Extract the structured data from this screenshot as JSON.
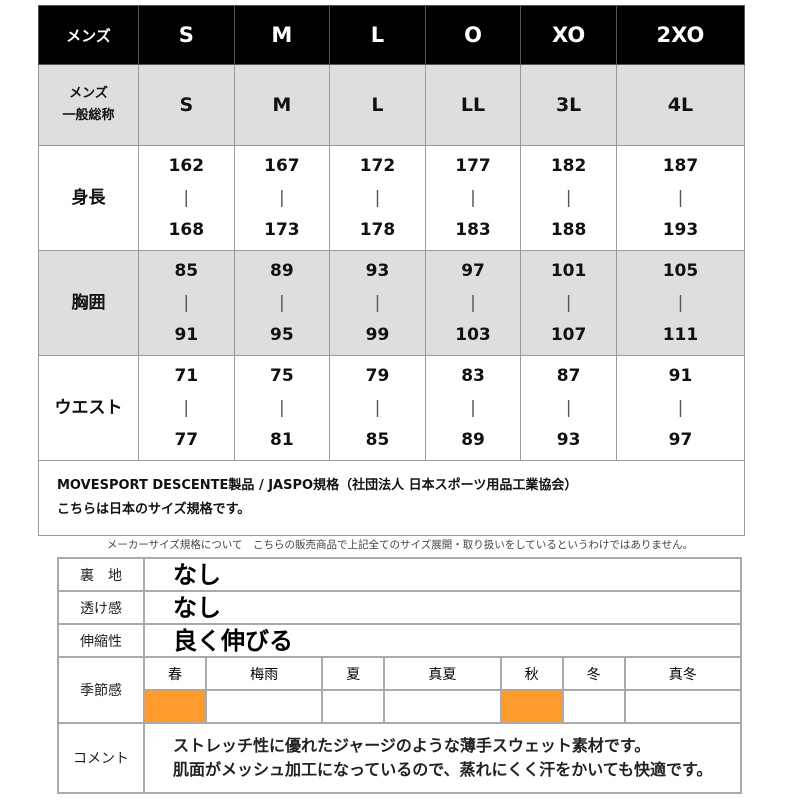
{
  "size_table": {
    "header": {
      "label": "メンズ",
      "sizes": [
        "S",
        "M",
        "L",
        "O",
        "XO",
        "2XO"
      ]
    },
    "general": {
      "label": "メンズ\n一般総称",
      "label_lines": [
        "メンズ",
        "一般総称"
      ],
      "values": [
        "S",
        "M",
        "L",
        "LL",
        "3L",
        "4L"
      ]
    },
    "rows": [
      {
        "label": "身長",
        "ranges": [
          [
            "162",
            "168"
          ],
          [
            "167",
            "173"
          ],
          [
            "172",
            "178"
          ],
          [
            "177",
            "183"
          ],
          [
            "182",
            "188"
          ],
          [
            "187",
            "193"
          ]
        ]
      },
      {
        "label": "胸囲",
        "ranges": [
          [
            "85",
            "91"
          ],
          [
            "89",
            "95"
          ],
          [
            "93",
            "99"
          ],
          [
            "97",
            "103"
          ],
          [
            "101",
            "107"
          ],
          [
            "105",
            "111"
          ]
        ]
      },
      {
        "label": "ウエスト",
        "ranges": [
          [
            "71",
            "77"
          ],
          [
            "75",
            "81"
          ],
          [
            "79",
            "85"
          ],
          [
            "83",
            "89"
          ],
          [
            "87",
            "93"
          ],
          [
            "91",
            "97"
          ]
        ]
      }
    ],
    "separator": "|"
  },
  "notes": [
    "MOVESPORT DESCENTE製品 / JASPO規格（社団法人 日本スポーツ用品工業協会）",
    "こちらは日本のサイズ規格です。"
  ],
  "disclaimer": "メーカーサイズ規格について　こちらの販売商品で上記全てのサイズ展開・取り扱いをしているというわけではありません。",
  "spec": {
    "lining": {
      "label": "裏　地",
      "value": "なし"
    },
    "sheer": {
      "label": "透け感",
      "value": "なし"
    },
    "stretch": {
      "label": "伸縮性",
      "value": "良く伸びる"
    },
    "season": {
      "label": "季節感",
      "seasons": [
        "春",
        "梅雨",
        "夏",
        "真夏",
        "秋",
        "冬",
        "真冬"
      ],
      "active": [
        true,
        false,
        false,
        false,
        true,
        false,
        false
      ],
      "active_color": "#ff9a2e"
    },
    "comment": {
      "label": "コメント",
      "lines": [
        "ストレッチ性に優れたジャージのような薄手スウェット素材です。",
        "肌面がメッシュ加工になっているので、蒸れにくく汗をかいても快適です。"
      ]
    }
  }
}
